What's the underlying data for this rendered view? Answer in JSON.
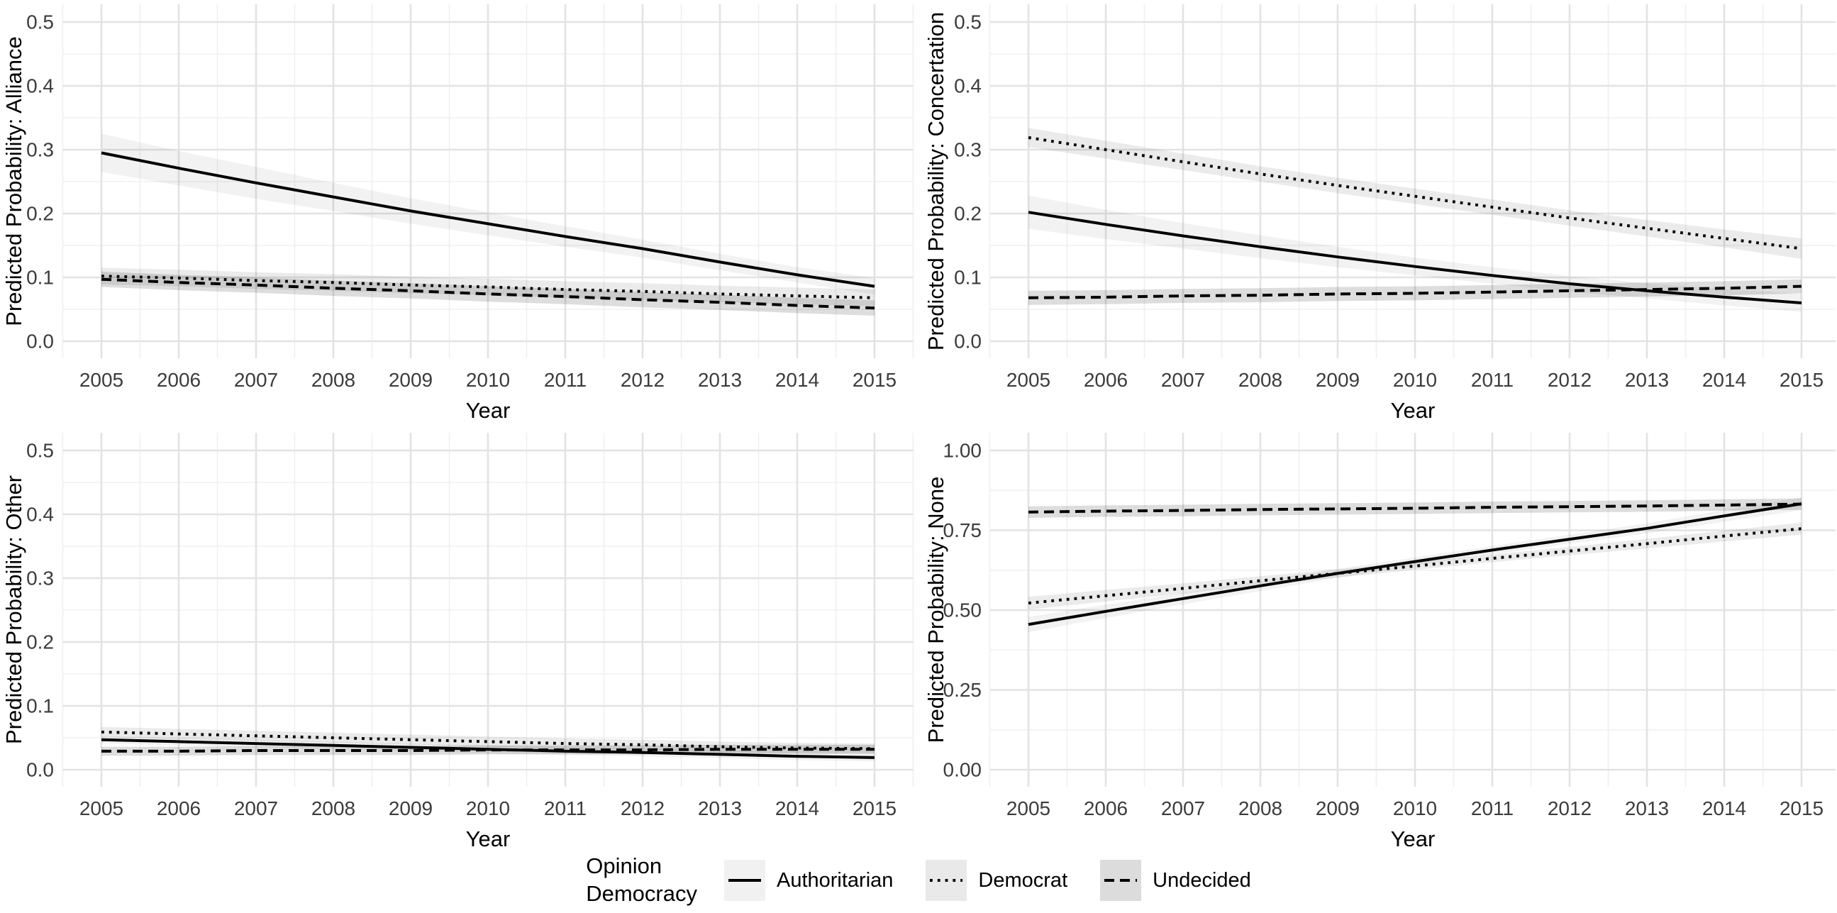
{
  "figure": {
    "background": "#ffffff",
    "colors": {
      "line": "#000000",
      "tick_label": "#3c3c3c",
      "axis_title": "#000000",
      "grid_major": "#e3e3e3",
      "grid_minor": "#f0f0f0",
      "ribbon_authoritarian": "rgba(0,0,0,0.05)",
      "ribbon_democrat": "rgba(0,0,0,0.08)",
      "ribbon_undecided": "rgba(0,0,0,0.135)"
    }
  },
  "legend": {
    "title_lines": [
      "Opinion",
      "Democracy"
    ],
    "items": [
      {
        "label": "Authoritarian",
        "linetype": "solid",
        "key_fill": "#f1f1f1"
      },
      {
        "label": "Democrat",
        "linetype": "dotted",
        "key_fill": "#e9e9e9"
      },
      {
        "label": "Undecided",
        "linetype": "dashed",
        "key_fill": "#dcdcdc"
      }
    ]
  },
  "chart_data": [
    {
      "type": "line",
      "position": "top-left",
      "ylabel": "Predicted Probability: Alliance",
      "xlabel": "Year",
      "x": [
        2005,
        2006,
        2007,
        2008,
        2009,
        2010,
        2011,
        2012,
        2013,
        2014,
        2015
      ],
      "xtick_labels": [
        "2005",
        "2006",
        "2007",
        "2008",
        "2009",
        "2010",
        "2011",
        "2012",
        "2013",
        "2014",
        "2015"
      ],
      "ylim": [
        0,
        0.5
      ],
      "yticks": [
        0,
        0.1,
        0.2,
        0.3,
        0.4,
        0.5
      ],
      "ytick_labels": [
        "0.0",
        "0.1",
        "0.2",
        "0.3",
        "0.4",
        "0.5"
      ],
      "grid": true,
      "series": [
        {
          "name": "Authoritarian",
          "linetype": "solid",
          "values": [
            0.295,
            0.271,
            0.248,
            0.226,
            0.204,
            0.184,
            0.164,
            0.145,
            0.124,
            0.104,
            0.086
          ],
          "ci_halfwidth": [
            0.03,
            0.027,
            0.025,
            0.022,
            0.02,
            0.018,
            0.016,
            0.014,
            0.013,
            0.012,
            0.013
          ]
        },
        {
          "name": "Democrat",
          "linetype": "dotted",
          "values": [
            0.102,
            0.099,
            0.095,
            0.092,
            0.088,
            0.085,
            0.081,
            0.078,
            0.074,
            0.071,
            0.068
          ],
          "ci_halfwidth": [
            0.013,
            0.013,
            0.013,
            0.013,
            0.013,
            0.013,
            0.013,
            0.013,
            0.013,
            0.013,
            0.013
          ]
        },
        {
          "name": "Undecided",
          "linetype": "dashed",
          "values": [
            0.097,
            0.092,
            0.088,
            0.083,
            0.079,
            0.074,
            0.07,
            0.065,
            0.061,
            0.056,
            0.052
          ],
          "ci_halfwidth": [
            0.012,
            0.012,
            0.012,
            0.012,
            0.012,
            0.012,
            0.012,
            0.012,
            0.012,
            0.012,
            0.012
          ]
        }
      ]
    },
    {
      "type": "line",
      "position": "top-right",
      "ylabel": "Predicted Probability: Concertation",
      "xlabel": "Year",
      "x": [
        2005,
        2006,
        2007,
        2008,
        2009,
        2010,
        2011,
        2012,
        2013,
        2014,
        2015
      ],
      "xtick_labels": [
        "2005",
        "2006",
        "2007",
        "2008",
        "2009",
        "2010",
        "2011",
        "2012",
        "2013",
        "2014",
        "2015"
      ],
      "ylim": [
        0,
        0.5
      ],
      "yticks": [
        0,
        0.1,
        0.2,
        0.3,
        0.4,
        0.5
      ],
      "ytick_labels": [
        "0.0",
        "0.1",
        "0.2",
        "0.3",
        "0.4",
        "0.5"
      ],
      "grid": true,
      "series": [
        {
          "name": "Authoritarian",
          "linetype": "solid",
          "values": [
            0.202,
            0.183,
            0.165,
            0.148,
            0.132,
            0.117,
            0.103,
            0.09,
            0.079,
            0.069,
            0.06
          ],
          "ci_halfwidth": [
            0.026,
            0.023,
            0.02,
            0.018,
            0.016,
            0.014,
            0.013,
            0.012,
            0.012,
            0.013,
            0.014
          ]
        },
        {
          "name": "Democrat",
          "linetype": "dotted",
          "values": [
            0.319,
            0.3,
            0.281,
            0.262,
            0.244,
            0.227,
            0.21,
            0.193,
            0.177,
            0.161,
            0.145
          ],
          "ci_halfwidth": [
            0.015,
            0.014,
            0.013,
            0.012,
            0.012,
            0.012,
            0.012,
            0.012,
            0.013,
            0.014,
            0.016
          ]
        },
        {
          "name": "Undecided",
          "linetype": "dashed",
          "values": [
            0.068,
            0.069,
            0.071,
            0.072,
            0.074,
            0.075,
            0.077,
            0.079,
            0.081,
            0.083,
            0.086
          ],
          "ci_halfwidth": [
            0.011,
            0.011,
            0.011,
            0.011,
            0.011,
            0.011,
            0.011,
            0.011,
            0.011,
            0.011,
            0.011
          ]
        }
      ]
    },
    {
      "type": "line",
      "position": "bottom-left",
      "ylabel": "Predicted Probability: Other",
      "xlabel": "Year",
      "x": [
        2005,
        2006,
        2007,
        2008,
        2009,
        2010,
        2011,
        2012,
        2013,
        2014,
        2015
      ],
      "xtick_labels": [
        "2005",
        "2006",
        "2007",
        "2008",
        "2009",
        "2010",
        "2011",
        "2012",
        "2013",
        "2014",
        "2015"
      ],
      "ylim": [
        0,
        0.5
      ],
      "yticks": [
        0,
        0.1,
        0.2,
        0.3,
        0.4,
        0.5
      ],
      "ytick_labels": [
        "0.0",
        "0.1",
        "0.2",
        "0.3",
        "0.4",
        "0.5"
      ],
      "grid": true,
      "series": [
        {
          "name": "Authoritarian",
          "linetype": "solid",
          "values": [
            0.047,
            0.044,
            0.041,
            0.038,
            0.035,
            0.032,
            0.029,
            0.027,
            0.024,
            0.021,
            0.019
          ],
          "ci_halfwidth": [
            0.006,
            0.006,
            0.006,
            0.006,
            0.006,
            0.006,
            0.006,
            0.006,
            0.006,
            0.006,
            0.006
          ]
        },
        {
          "name": "Democrat",
          "linetype": "dotted",
          "values": [
            0.059,
            0.056,
            0.053,
            0.05,
            0.047,
            0.044,
            0.041,
            0.039,
            0.036,
            0.034,
            0.033
          ],
          "ci_halfwidth": [
            0.008,
            0.008,
            0.008,
            0.008,
            0.008,
            0.008,
            0.008,
            0.008,
            0.008,
            0.008,
            0.008
          ]
        },
        {
          "name": "Undecided",
          "linetype": "dashed",
          "values": [
            0.029,
            0.029,
            0.03,
            0.03,
            0.03,
            0.031,
            0.031,
            0.031,
            0.032,
            0.032,
            0.032
          ],
          "ci_halfwidth": [
            0.007,
            0.007,
            0.007,
            0.007,
            0.007,
            0.007,
            0.007,
            0.007,
            0.007,
            0.007,
            0.007
          ]
        }
      ]
    },
    {
      "type": "line",
      "position": "bottom-right",
      "ylabel": "Predicted Probability: None",
      "xlabel": "Year",
      "x": [
        2005,
        2006,
        2007,
        2008,
        2009,
        2010,
        2011,
        2012,
        2013,
        2014,
        2015
      ],
      "xtick_labels": [
        "2005",
        "2006",
        "2007",
        "2008",
        "2009",
        "2010",
        "2011",
        "2012",
        "2013",
        "2014",
        "2015"
      ],
      "ylim": [
        0,
        1.0
      ],
      "yticks": [
        0,
        0.25,
        0.5,
        0.75,
        1.0
      ],
      "ytick_labels": [
        "0.00",
        "0.25",
        "0.50",
        "0.75",
        "1.00"
      ],
      "grid": true,
      "series": [
        {
          "name": "Authoritarian",
          "linetype": "solid",
          "values": [
            0.455,
            0.496,
            0.536,
            0.576,
            0.615,
            0.652,
            0.688,
            0.722,
            0.756,
            0.795,
            0.833
          ],
          "ci_halfwidth": [
            0.024,
            0.021,
            0.018,
            0.016,
            0.014,
            0.013,
            0.013,
            0.014,
            0.016,
            0.018,
            0.02
          ]
        },
        {
          "name": "Democrat",
          "linetype": "dotted",
          "values": [
            0.522,
            0.545,
            0.568,
            0.592,
            0.615,
            0.638,
            0.662,
            0.685,
            0.708,
            0.732,
            0.755
          ],
          "ci_halfwidth": [
            0.02,
            0.018,
            0.016,
            0.014,
            0.013,
            0.012,
            0.012,
            0.013,
            0.015,
            0.017,
            0.019
          ]
        },
        {
          "name": "Undecided",
          "linetype": "dashed",
          "values": [
            0.807,
            0.81,
            0.812,
            0.815,
            0.817,
            0.819,
            0.822,
            0.824,
            0.826,
            0.829,
            0.832
          ],
          "ci_halfwidth": [
            0.018,
            0.018,
            0.018,
            0.018,
            0.018,
            0.018,
            0.018,
            0.018,
            0.018,
            0.018,
            0.018
          ]
        }
      ]
    }
  ]
}
